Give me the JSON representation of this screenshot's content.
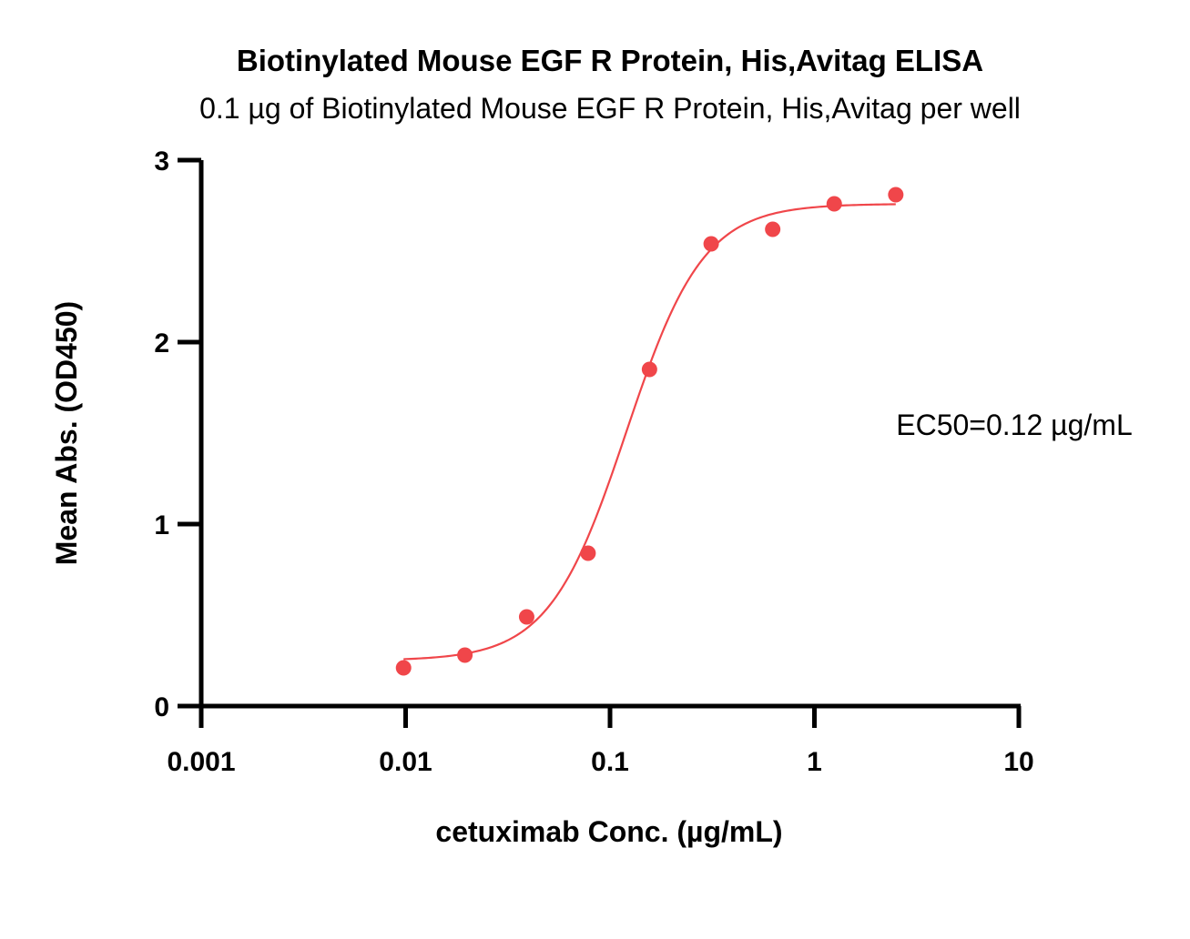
{
  "chart_data": {
    "type": "scatter",
    "title": "Biotinylated Mouse EGF R Protein, His,Avitag ELISA",
    "subtitle": "0.1 µg of Biotinylated Mouse EGF R Protein, His,Avitag per well",
    "xlabel": "cetuximab Conc. (µg/mL)",
    "ylabel": "Mean Abs. (OD450)",
    "x_scale": "log",
    "xlim": [
      0.001,
      10
    ],
    "ylim": [
      0,
      3
    ],
    "x_ticks": [
      "0.001",
      "0.01",
      "0.1",
      "1",
      "10"
    ],
    "y_ticks": [
      "0",
      "1",
      "2",
      "3"
    ],
    "grid": false,
    "annotation": "EC50=0.12 µg/mL",
    "color": "#f0464a",
    "series": [
      {
        "x": [
          0.00977,
          0.0195,
          0.0391,
          0.0781,
          0.156,
          0.3125,
          0.625,
          1.25,
          2.5
        ],
        "y": [
          0.21,
          0.28,
          0.49,
          0.84,
          1.85,
          2.54,
          2.62,
          2.76,
          2.81
        ]
      }
    ],
    "fit": {
      "model": "4PL",
      "bottom": 0.25,
      "top": 2.76,
      "ec50": 0.12,
      "hill": 2.3
    }
  }
}
